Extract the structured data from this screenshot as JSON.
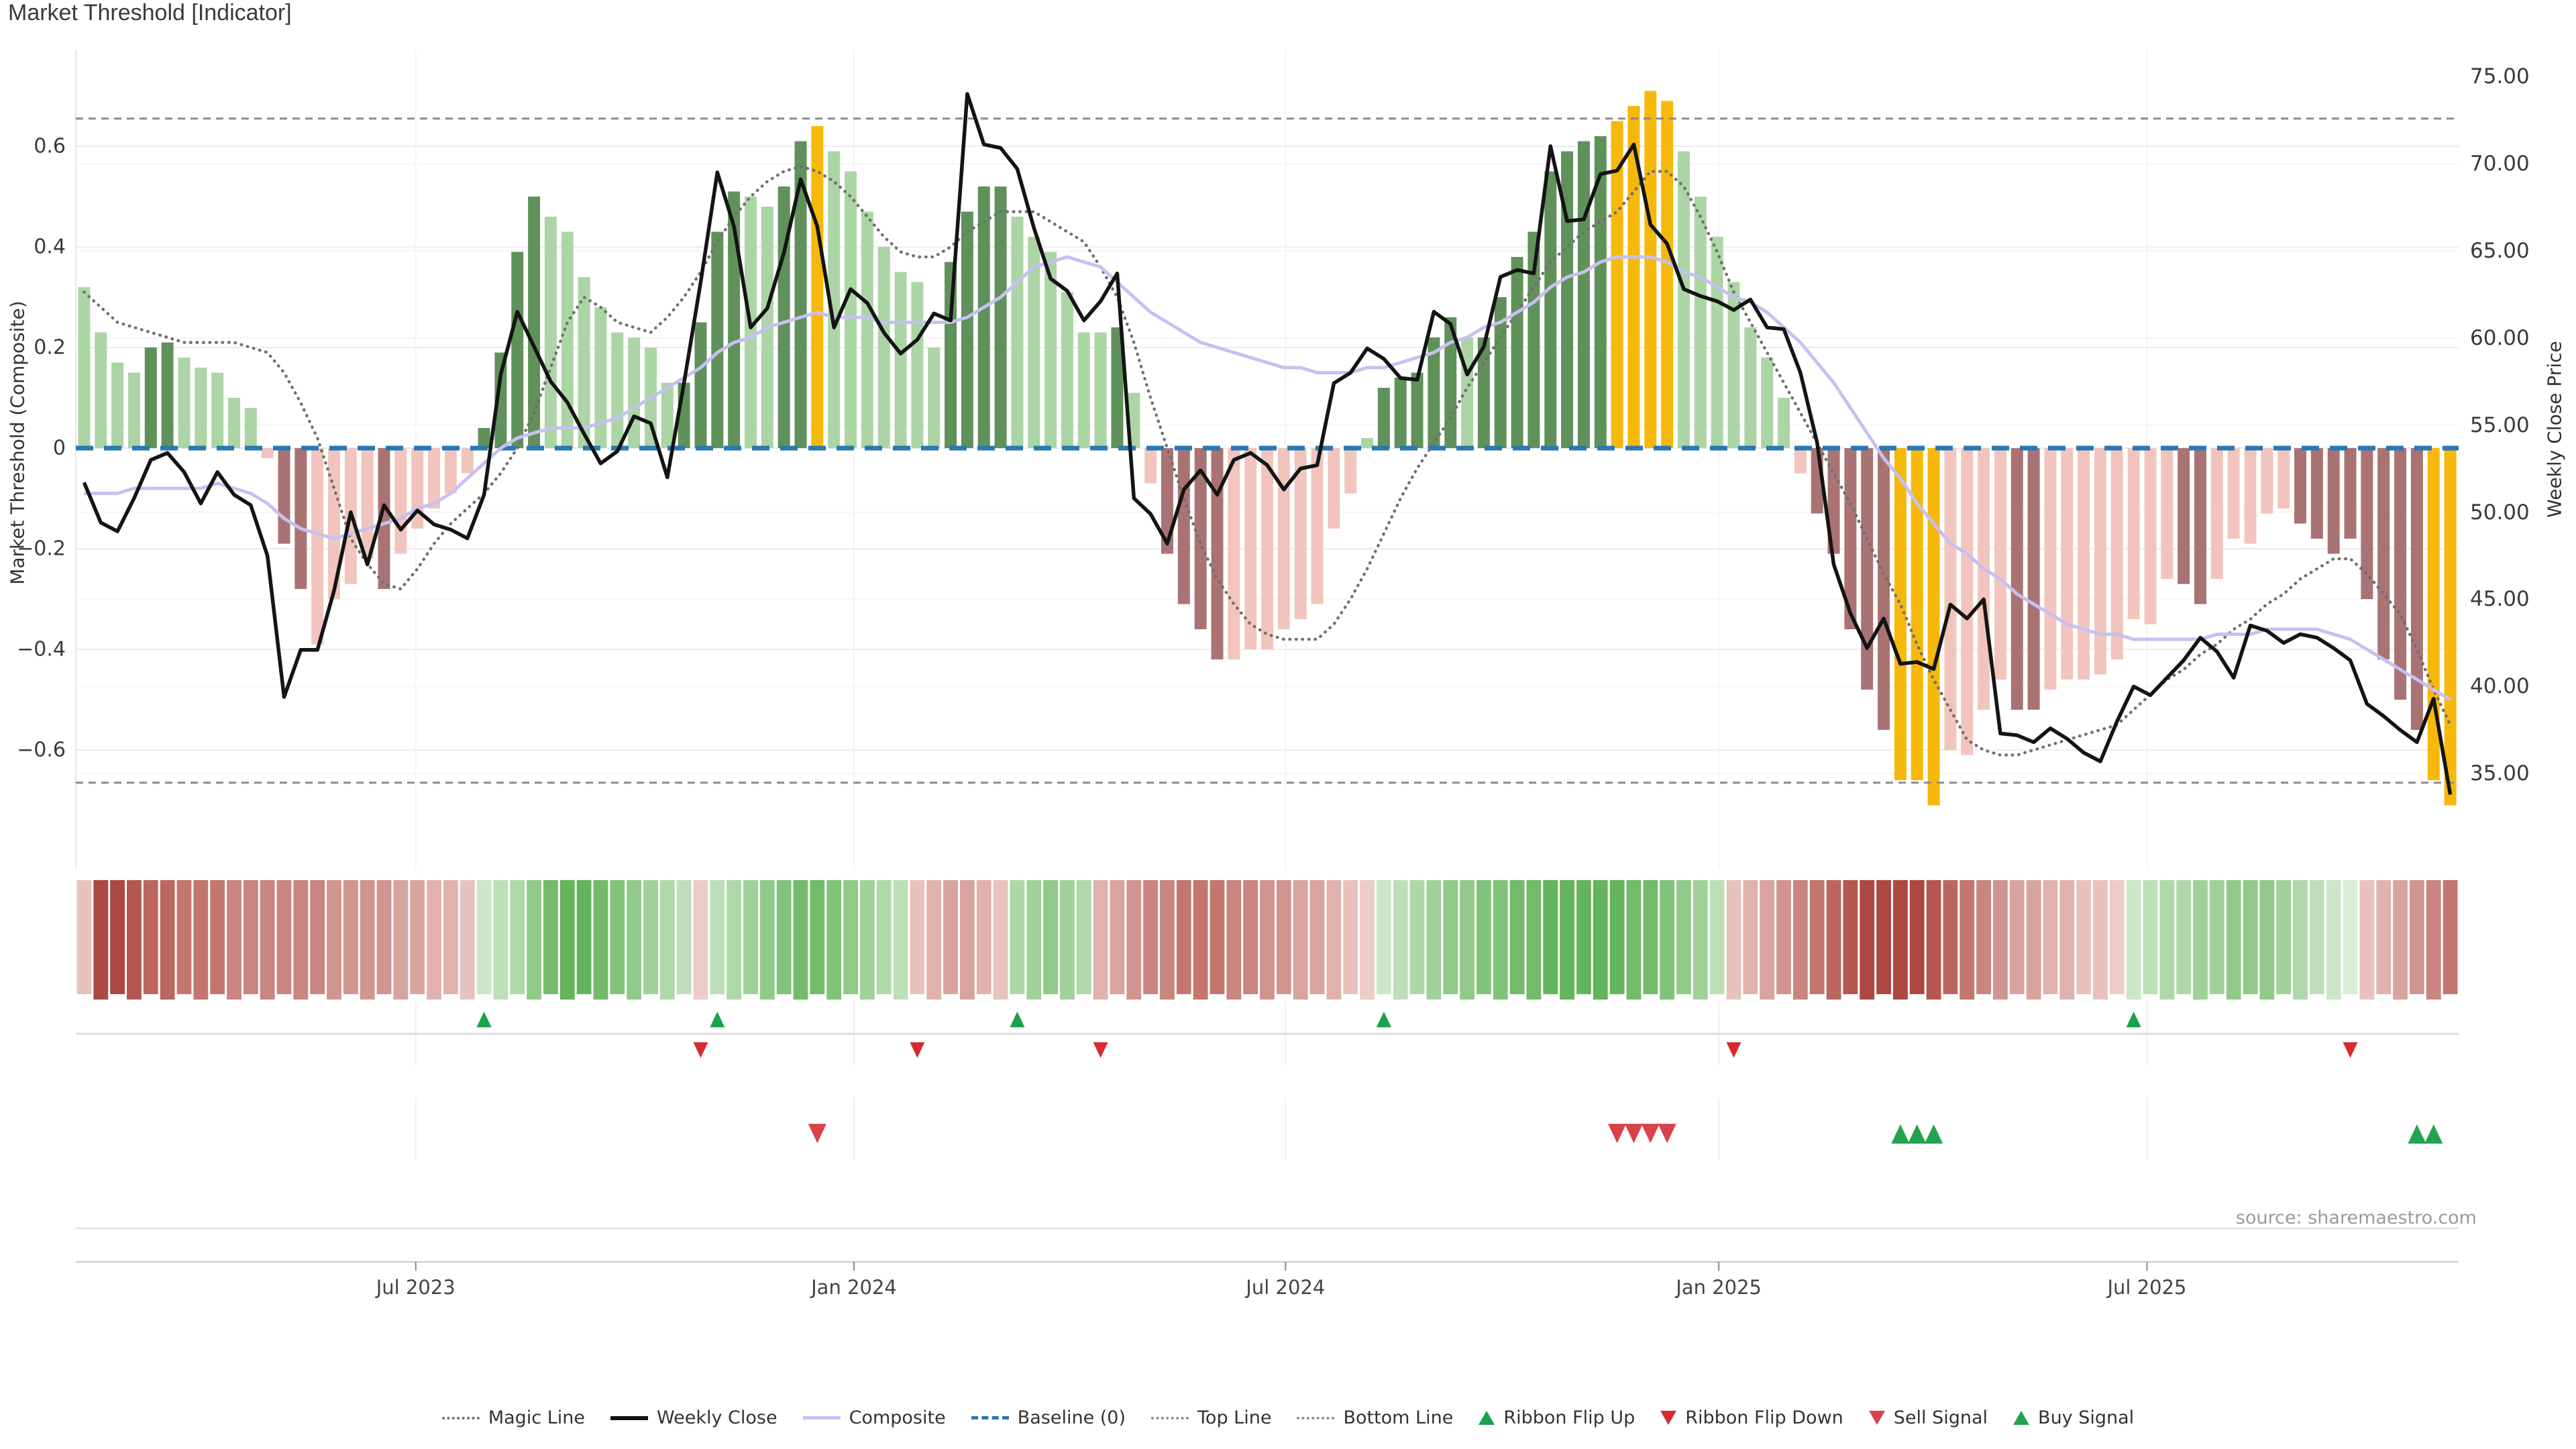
{
  "title": "Market Threshold [Indicator]",
  "source_text": "source: sharemaestro.com",
  "axes": {
    "left_label": "Market Threshold (Composite)",
    "right_label": "Weekly Close Price",
    "left_ticks": [
      {
        "label": "0.6",
        "value": 0.6
      },
      {
        "label": "0.4",
        "value": 0.4
      },
      {
        "label": "0.2",
        "value": 0.2
      },
      {
        "label": "0",
        "value": 0.0
      },
      {
        "label": "−0.2",
        "value": -0.2
      },
      {
        "label": "−0.4",
        "value": -0.4
      },
      {
        "label": "−0.6",
        "value": -0.6
      }
    ],
    "right_ticks": [
      {
        "label": "75.00",
        "value": 75
      },
      {
        "label": "70.00",
        "value": 70
      },
      {
        "label": "65.00",
        "value": 65
      },
      {
        "label": "60.00",
        "value": 60
      },
      {
        "label": "55.00",
        "value": 55
      },
      {
        "label": "50.00",
        "value": 50
      },
      {
        "label": "45.00",
        "value": 45
      },
      {
        "label": "40.00",
        "value": 40
      },
      {
        "label": "35.00",
        "value": 35
      }
    ],
    "x_ticks": [
      {
        "label": "Jul 2023",
        "week": 20.4
      },
      {
        "label": "Jan 2024",
        "week": 46.7
      },
      {
        "label": "Jul 2024",
        "week": 72.6
      },
      {
        "label": "Jan 2025",
        "week": 98.6
      },
      {
        "label": "Jul 2025",
        "week": 124.3
      }
    ]
  },
  "legend": {
    "items": [
      {
        "label": "Magic Line",
        "swatch": "dotted",
        "color": "#6f6f6f",
        "weight": 4
      },
      {
        "label": "Weekly Close",
        "swatch": "solid",
        "color": "#141414",
        "weight": 6
      },
      {
        "label": "Composite",
        "swatch": "solid",
        "color": "#c7c0f1",
        "weight": 5
      },
      {
        "label": "Baseline (0)",
        "swatch": "dashed",
        "color": "#2878b4",
        "weight": 5
      },
      {
        "label": "Top Line",
        "swatch": "dotted",
        "color": "#8c8c8c",
        "weight": 4
      },
      {
        "label": "Bottom Line",
        "swatch": "dotted",
        "color": "#8c8c8c",
        "weight": 4
      },
      {
        "label": "Ribbon Flip Up",
        "swatch": "triangle-up",
        "color": "#17a24c"
      },
      {
        "label": "Ribbon Flip Down",
        "swatch": "triangle-down",
        "color": "#d62b31"
      },
      {
        "label": "Sell Signal",
        "swatch": "triangle-down",
        "color": "#d9414b"
      },
      {
        "label": "Buy Signal",
        "swatch": "triangle-up",
        "color": "#23a34f"
      }
    ]
  },
  "colors": {
    "bar_light_green": "#acd5a5",
    "bar_dark_green": "#60915b",
    "bar_gold": "#f6b80b",
    "bar_light_pink": "#f1c5be",
    "bar_dark_mauve": "#aa7373",
    "weekly_close": "#141414",
    "composite": "#c7c0f1",
    "magic_line": "#6f6f6f",
    "baseline": "#2878b4",
    "top_bottom_line": "#8c8c8c",
    "flip_up_green": "#17a24c",
    "flip_down_red": "#d62b31",
    "sell_red": "#d9414b",
    "buy_green": "#23a34f",
    "ribbon_red_dark": "#ac4840",
    "ribbon_red_light": "#f7e0dc",
    "ribbon_green_dark": "#55ad4b",
    "ribbon_green_light": "#e9f5e6",
    "grid": "#ececec",
    "grid_faint": "#f6f6f6",
    "panel_line": "#dcdcdc",
    "axis_line": "#c8c8c8"
  },
  "chart_data": {
    "type": "bar+line",
    "title": "Market Threshold [Indicator]",
    "x_unit": "week",
    "n_weeks": 143,
    "baseline": 0,
    "top_line": 0.655,
    "bottom_line": -0.665,
    "left_axis": {
      "label": "Market Threshold (Composite)",
      "range": [
        -0.84,
        0.79
      ]
    },
    "right_axis": {
      "label": "Weekly Close Price",
      "range": [
        29.7,
        76.3
      ]
    },
    "grid": "on",
    "legend_position": "bottom-center",
    "bars": {
      "name": "Market Threshold histogram",
      "values": [
        0.32,
        0.23,
        0.17,
        0.15,
        0.2,
        0.21,
        0.18,
        0.16,
        0.15,
        0.1,
        0.08,
        -0.02,
        -0.19,
        -0.28,
        -0.39,
        -0.3,
        -0.27,
        -0.22,
        -0.28,
        -0.21,
        -0.16,
        -0.12,
        -0.09,
        -0.05,
        0.04,
        0.19,
        0.39,
        0.5,
        0.46,
        0.43,
        0.34,
        0.28,
        0.23,
        0.22,
        0.2,
        0.13,
        0.13,
        0.25,
        0.43,
        0.51,
        0.5,
        0.48,
        0.52,
        0.61,
        0.64,
        0.59,
        0.55,
        0.47,
        0.4,
        0.35,
        0.33,
        0.2,
        0.37,
        0.47,
        0.52,
        0.52,
        0.46,
        0.42,
        0.39,
        0.31,
        0.23,
        0.23,
        0.24,
        0.11,
        -0.07,
        -0.21,
        -0.31,
        -0.36,
        -0.42,
        -0.42,
        -0.4,
        -0.4,
        -0.36,
        -0.34,
        -0.31,
        -0.16,
        -0.09,
        0.02,
        0.12,
        0.14,
        0.15,
        0.22,
        0.26,
        0.22,
        0.22,
        0.3,
        0.38,
        0.43,
        0.55,
        0.59,
        0.61,
        0.62,
        0.65,
        0.68,
        0.71,
        0.69,
        0.59,
        0.5,
        0.42,
        0.33,
        0.24,
        0.18,
        0.1,
        -0.05,
        -0.13,
        -0.21,
        -0.36,
        -0.48,
        -0.56,
        -0.66,
        -0.66,
        -0.71,
        -0.6,
        -0.61,
        -0.52,
        -0.46,
        -0.52,
        -0.52,
        -0.48,
        -0.46,
        -0.46,
        -0.45,
        -0.42,
        -0.34,
        -0.35,
        -0.26,
        -0.27,
        -0.31,
        -0.26,
        -0.18,
        -0.19,
        -0.13,
        -0.12,
        -0.15,
        -0.18,
        -0.21,
        -0.18,
        -0.3,
        -0.42,
        -0.5,
        -0.56,
        -0.66,
        -0.71
      ],
      "palette": [
        "lg",
        "lg",
        "lg",
        "lg",
        "dg",
        "dg",
        "lg",
        "lg",
        "lg",
        "lg",
        "lg",
        "lp",
        "dp",
        "dp",
        "lp",
        "lp",
        "lp",
        "lp",
        "dp",
        "lp",
        "lp",
        "lp",
        "lp",
        "lp",
        "dg",
        "dg",
        "dg",
        "dg",
        "lg",
        "lg",
        "lg",
        "lg",
        "lg",
        "lg",
        "lg",
        "lg",
        "dg",
        "dg",
        "dg",
        "dg",
        "lg",
        "lg",
        "dg",
        "dg",
        "au",
        "lg",
        "lg",
        "lg",
        "lg",
        "lg",
        "lg",
        "lg",
        "dg",
        "dg",
        "dg",
        "dg",
        "lg",
        "lg",
        "lg",
        "lg",
        "lg",
        "lg",
        "dg",
        "lg",
        "lp",
        "dp",
        "dp",
        "dp",
        "dp",
        "lp",
        "lp",
        "lp",
        "lp",
        "lp",
        "lp",
        "lp",
        "lp",
        "lg",
        "dg",
        "dg",
        "dg",
        "dg",
        "dg",
        "lg",
        "dg",
        "dg",
        "dg",
        "dg",
        "dg",
        "dg",
        "dg",
        "dg",
        "au",
        "au",
        "au",
        "au",
        "lg",
        "lg",
        "lg",
        "lg",
        "lg",
        "lg",
        "lg",
        "lp",
        "dp",
        "dp",
        "dp",
        "dp",
        "dp",
        "au",
        "au",
        "au",
        "lp",
        "lp",
        "lp",
        "lp",
        "dp",
        "dp",
        "lp",
        "lp",
        "lp",
        "lp",
        "lp",
        "lp",
        "lp",
        "lp",
        "dp",
        "dp",
        "lp",
        "lp",
        "lp",
        "lp",
        "lp",
        "dp",
        "dp",
        "dp",
        "dp",
        "dp",
        "dp",
        "dp",
        "dp",
        "au",
        "au"
      ]
    },
    "weekly_close": {
      "name": "Weekly Close",
      "axis": "right",
      "values": [
        51.7,
        49.4,
        48.9,
        50.8,
        53.0,
        53.4,
        52.3,
        50.5,
        52.3,
        51.0,
        50.4,
        47.5,
        39.4,
        42.1,
        42.1,
        45.5,
        50.0,
        47.0,
        50.4,
        49.0,
        50.1,
        49.3,
        49.0,
        48.5,
        51.0,
        57.9,
        61.5,
        59.5,
        57.5,
        56.3,
        54.5,
        52.8,
        53.5,
        55.5,
        55.1,
        52.0,
        57.4,
        63.2,
        69.5,
        66.4,
        60.6,
        61.7,
        64.9,
        69.1,
        66.4,
        60.6,
        62.8,
        62.0,
        60.3,
        59.1,
        59.9,
        61.4,
        61.0,
        74.0,
        71.1,
        70.9,
        69.7,
        66.3,
        63.4,
        62.7,
        61.0,
        62.1,
        63.7,
        50.8,
        49.9,
        48.2,
        51.3,
        52.4,
        51.0,
        53.0,
        53.4,
        52.7,
        51.3,
        52.5,
        52.7,
        57.4,
        58.0,
        59.4,
        58.8,
        57.7,
        57.6,
        61.5,
        60.8,
        57.9,
        59.5,
        63.5,
        63.9,
        63.7,
        71.0,
        66.7,
        66.8,
        69.4,
        69.6,
        71.1,
        66.5,
        65.4,
        62.8,
        62.4,
        62.1,
        61.6,
        62.2,
        60.6,
        60.5,
        58.0,
        54.0,
        47.0,
        44.2,
        42.2,
        43.9,
        41.3,
        41.4,
        41.0,
        44.7,
        43.9,
        45.0,
        37.3,
        37.2,
        36.8,
        37.6,
        37.0,
        36.2,
        35.7,
        38.0,
        40.0,
        39.5,
        40.5,
        41.5,
        42.8,
        42.0,
        40.5,
        43.5,
        43.2,
        42.5,
        43.0,
        42.8,
        42.2,
        41.5,
        39.0,
        38.3,
        37.5,
        36.8,
        39.3,
        33.8
      ]
    },
    "composite": {
      "name": "Composite",
      "axis": "left",
      "values": [
        -0.09,
        -0.09,
        -0.09,
        -0.08,
        -0.08,
        -0.08,
        -0.08,
        -0.08,
        -0.07,
        -0.08,
        -0.09,
        -0.11,
        -0.14,
        -0.16,
        -0.17,
        -0.18,
        -0.17,
        -0.16,
        -0.15,
        -0.14,
        -0.12,
        -0.11,
        -0.09,
        -0.06,
        -0.03,
        0.0,
        0.02,
        0.03,
        0.04,
        0.04,
        0.04,
        0.05,
        0.06,
        0.08,
        0.1,
        0.12,
        0.14,
        0.16,
        0.19,
        0.21,
        0.22,
        0.24,
        0.25,
        0.26,
        0.27,
        0.26,
        0.26,
        0.26,
        0.25,
        0.25,
        0.25,
        0.25,
        0.25,
        0.26,
        0.28,
        0.3,
        0.33,
        0.36,
        0.37,
        0.38,
        0.37,
        0.36,
        0.33,
        0.3,
        0.27,
        0.25,
        0.23,
        0.21,
        0.2,
        0.19,
        0.18,
        0.17,
        0.16,
        0.16,
        0.15,
        0.15,
        0.15,
        0.16,
        0.16,
        0.17,
        0.18,
        0.19,
        0.21,
        0.22,
        0.24,
        0.25,
        0.27,
        0.29,
        0.32,
        0.34,
        0.35,
        0.37,
        0.38,
        0.38,
        0.38,
        0.37,
        0.35,
        0.34,
        0.32,
        0.3,
        0.29,
        0.27,
        0.24,
        0.21,
        0.17,
        0.13,
        0.08,
        0.03,
        -0.02,
        -0.06,
        -0.11,
        -0.15,
        -0.19,
        -0.21,
        -0.24,
        -0.26,
        -0.29,
        -0.31,
        -0.33,
        -0.35,
        -0.36,
        -0.37,
        -0.37,
        -0.38,
        -0.38,
        -0.38,
        -0.38,
        -0.38,
        -0.37,
        -0.37,
        -0.37,
        -0.36,
        -0.36,
        -0.36,
        -0.36,
        -0.37,
        -0.38,
        -0.4,
        -0.42,
        -0.44,
        -0.46,
        -0.48,
        -0.5
      ]
    },
    "magic_line": {
      "name": "Magic Line",
      "axis": "left",
      "values": [
        0.31,
        0.28,
        0.25,
        0.24,
        0.23,
        0.22,
        0.21,
        0.21,
        0.21,
        0.21,
        0.2,
        0.19,
        0.15,
        0.09,
        0.02,
        -0.08,
        -0.18,
        -0.23,
        -0.27,
        -0.28,
        -0.24,
        -0.19,
        -0.15,
        -0.12,
        -0.09,
        -0.05,
        0.0,
        0.07,
        0.16,
        0.25,
        0.3,
        0.28,
        0.25,
        0.24,
        0.23,
        0.26,
        0.3,
        0.35,
        0.41,
        0.46,
        0.5,
        0.53,
        0.55,
        0.56,
        0.55,
        0.53,
        0.5,
        0.46,
        0.42,
        0.39,
        0.38,
        0.38,
        0.4,
        0.43,
        0.45,
        0.47,
        0.47,
        0.47,
        0.45,
        0.43,
        0.41,
        0.36,
        0.3,
        0.21,
        0.1,
        0.0,
        -0.1,
        -0.19,
        -0.26,
        -0.31,
        -0.35,
        -0.37,
        -0.38,
        -0.38,
        -0.38,
        -0.35,
        -0.3,
        -0.24,
        -0.17,
        -0.1,
        -0.04,
        0.01,
        0.06,
        0.12,
        0.17,
        0.22,
        0.27,
        0.32,
        0.37,
        0.4,
        0.43,
        0.45,
        0.47,
        0.51,
        0.55,
        0.55,
        0.52,
        0.46,
        0.39,
        0.31,
        0.25,
        0.19,
        0.13,
        0.07,
        0.01,
        -0.05,
        -0.11,
        -0.18,
        -0.25,
        -0.31,
        -0.39,
        -0.46,
        -0.52,
        -0.58,
        -0.6,
        -0.61,
        -0.61,
        -0.6,
        -0.59,
        -0.58,
        -0.57,
        -0.56,
        -0.55,
        -0.52,
        -0.49,
        -0.46,
        -0.44,
        -0.41,
        -0.39,
        -0.36,
        -0.34,
        -0.31,
        -0.29,
        -0.26,
        -0.24,
        -0.22,
        -0.22,
        -0.25,
        -0.29,
        -0.33,
        -0.4,
        -0.48,
        -0.55
      ]
    },
    "ribbon": {
      "name": "Ribbon heatmap",
      "scale": [
        -5,
        5
      ],
      "values": [
        -1,
        -5,
        -5,
        -4.5,
        -4,
        -4,
        -3.5,
        -3.5,
        -3.5,
        -3,
        -3,
        -3,
        -3,
        -3,
        -3,
        -2.5,
        -2.5,
        -2.5,
        -2.5,
        -2,
        -2,
        -1.5,
        -1.5,
        -1,
        1,
        1.5,
        2,
        3,
        4,
        4.5,
        4.5,
        4,
        3.5,
        3,
        2.5,
        2,
        1.5,
        -0.7,
        1.5,
        2,
        2.5,
        3,
        3.5,
        4,
        4,
        3.5,
        3,
        2.5,
        2,
        1.5,
        -1,
        -1.5,
        -2,
        -2,
        -1.5,
        -1,
        2,
        2.5,
        3,
        2.5,
        2,
        -1.5,
        -2,
        -2.5,
        -3,
        -3,
        -3.5,
        -3.5,
        -3.5,
        -3,
        -3,
        -2.5,
        -2.5,
        -2,
        -2,
        -1.5,
        -1,
        -0.7,
        1,
        1.5,
        2,
        2.5,
        3,
        3,
        3.5,
        3.5,
        4,
        4,
        4.5,
        4.5,
        4.5,
        4.5,
        4.5,
        4,
        4,
        3.5,
        3,
        2.5,
        1.5,
        -1,
        -1.5,
        -2,
        -2.5,
        -3,
        -3.5,
        -4,
        -4.5,
        -5,
        -5,
        -5,
        -5,
        -4.5,
        -4,
        -3.5,
        -3,
        -2.5,
        -2,
        -2,
        -1.5,
        -1.5,
        -1,
        -1,
        -0.7,
        1,
        1.5,
        2,
        2,
        2.5,
        2.5,
        3,
        3,
        3,
        2.5,
        2,
        1.5,
        1,
        0.5,
        -1,
        -1.5,
        -2,
        -2.5,
        -3,
        -3.5
      ]
    },
    "signals": {
      "ribbon_flip_up_weeks": [
        24,
        38,
        56,
        78,
        123
      ],
      "ribbon_flip_down_weeks": [
        37,
        50,
        61,
        99,
        136
      ],
      "sell_signal_weeks": [
        44,
        92,
        93,
        94,
        95
      ],
      "buy_signal_weeks": [
        109,
        110,
        111,
        140,
        141
      ]
    }
  }
}
